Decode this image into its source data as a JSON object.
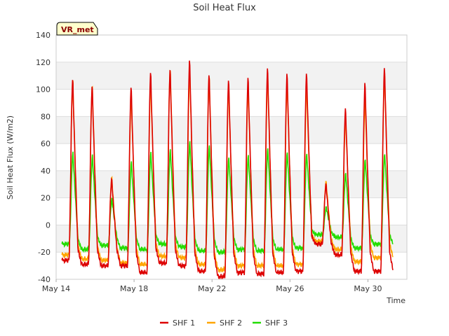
{
  "chart_data": {
    "type": "line",
    "title": "Soil Heat Flux",
    "xlabel": "Time",
    "ylabel": "Soil Heat Flux (W/m2)",
    "badge": "VR_met",
    "ylim": [
      -40,
      140
    ],
    "yticks": [
      -40,
      -20,
      0,
      20,
      40,
      60,
      80,
      100,
      120,
      140
    ],
    "xlim_days": [
      14,
      32
    ],
    "xticks": [
      {
        "day": 14,
        "label": "May 14"
      },
      {
        "day": 18,
        "label": "May 18"
      },
      {
        "day": 22,
        "label": "May 22"
      },
      {
        "day": 26,
        "label": "May 26"
      },
      {
        "day": 30,
        "label": "May 30"
      }
    ],
    "grid": true,
    "legend_position": "bottom",
    "days": [
      14,
      15,
      16,
      17,
      18,
      19,
      20,
      21,
      22,
      23,
      24,
      25,
      26,
      27,
      28,
      29,
      30,
      31
    ],
    "series": [
      {
        "name": "SHF 1",
        "color": "#dd0000",
        "daily_peaks": [
          108,
          103,
          34,
          102,
          113,
          115,
          122,
          111,
          107,
          109,
          116,
          112,
          112,
          30,
          86,
          105,
          116
        ],
        "daily_mins": [
          -26,
          -29,
          -30,
          -30,
          -35,
          -28,
          -30,
          -34,
          -38,
          -35,
          -36,
          -35,
          -34,
          -14,
          -22,
          -34,
          -34
        ]
      },
      {
        "name": "SHF 2",
        "color": "#ffa500",
        "daily_peaks": [
          107,
          103,
          35,
          96,
          106,
          115,
          114,
          110,
          102,
          103,
          110,
          106,
          102,
          32,
          80,
          93,
          112
        ],
        "daily_mins": [
          -22,
          -25,
          -26,
          -28,
          -29,
          -23,
          -24,
          -29,
          -33,
          -30,
          -30,
          -30,
          -29,
          -12,
          -18,
          -27,
          -24
        ]
      },
      {
        "name": "SHF 3",
        "color": "#22dd00",
        "daily_peaks": [
          53,
          51,
          19,
          46,
          53,
          55,
          61,
          58,
          49,
          51,
          56,
          53,
          52,
          13,
          38,
          48,
          52
        ],
        "daily_mins": [
          -14,
          -18,
          -15,
          -17,
          -18,
          -14,
          -16,
          -19,
          -20,
          -18,
          -19,
          -18,
          -17,
          -7,
          -9,
          -17,
          -14
        ]
      }
    ]
  }
}
